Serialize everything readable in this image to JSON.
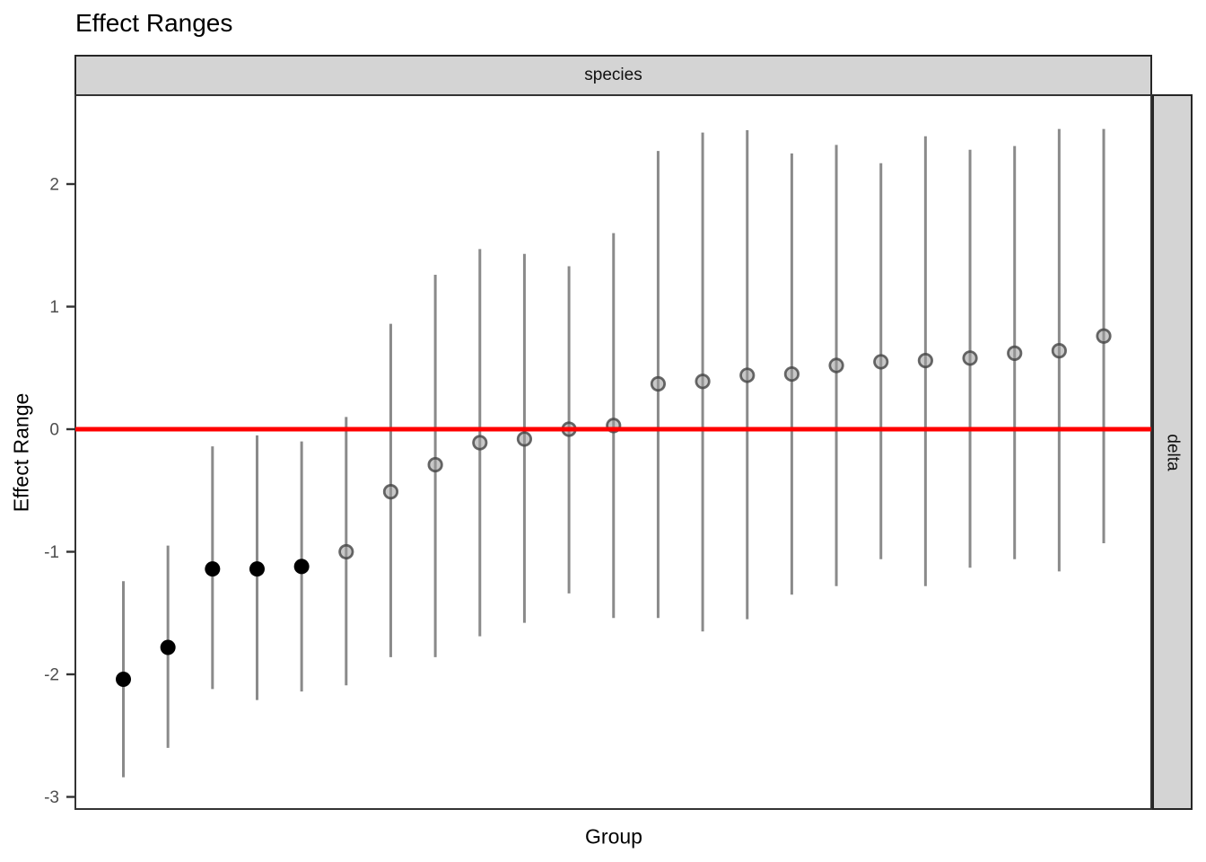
{
  "title": "Effect Ranges",
  "facets": {
    "top_strip": "species",
    "right_strip": "delta"
  },
  "axes": {
    "y_label": "Effect Range",
    "x_label": "Group",
    "y_ticks": [
      "2",
      "1",
      "0",
      "-1",
      "-2",
      "-3"
    ],
    "y_tick_values": [
      2,
      1,
      0,
      -1,
      -2,
      -3
    ]
  },
  "reference_line": {
    "y": 0,
    "color": "#ff0000"
  },
  "colors": {
    "strip_fill": "#d4d4d4",
    "strip_border": "#262626",
    "panel_border": "#333333",
    "errorbar": "#8a8a8a",
    "significant_point": "#000000",
    "nonsignificant_point_fill": "#9a9a9a",
    "nonsignificant_point_stroke": "#444444",
    "tick_label": "#4d4d4d"
  },
  "chart_data": {
    "type": "pointrange-scatter",
    "title": "Effect Ranges",
    "xlabel": "Group",
    "ylabel": "Effect Range",
    "facet_row": "species",
    "facet_col": "delta",
    "ylim": [
      -3.1,
      2.74
    ],
    "reference_y": 0,
    "legend": "none",
    "points": [
      {
        "group": 1,
        "y": -2.04,
        "lo": -2.84,
        "hi": -1.24,
        "significant": true
      },
      {
        "group": 2,
        "y": -1.78,
        "lo": -2.6,
        "hi": -0.95,
        "significant": true
      },
      {
        "group": 3,
        "y": -1.14,
        "lo": -2.12,
        "hi": -0.14,
        "significant": true
      },
      {
        "group": 4,
        "y": -1.14,
        "lo": -2.21,
        "hi": -0.05,
        "significant": true
      },
      {
        "group": 5,
        "y": -1.12,
        "lo": -2.14,
        "hi": -0.1,
        "significant": true
      },
      {
        "group": 6,
        "y": -1.0,
        "lo": -2.09,
        "hi": 0.1,
        "significant": false
      },
      {
        "group": 7,
        "y": -0.51,
        "lo": -1.86,
        "hi": 0.86,
        "significant": false
      },
      {
        "group": 8,
        "y": -0.29,
        "lo": -1.86,
        "hi": 1.26,
        "significant": false
      },
      {
        "group": 9,
        "y": -0.11,
        "lo": -1.69,
        "hi": 1.47,
        "significant": false
      },
      {
        "group": 10,
        "y": -0.08,
        "lo": -1.58,
        "hi": 1.43,
        "significant": false
      },
      {
        "group": 11,
        "y": 0.0,
        "lo": -1.34,
        "hi": 1.33,
        "significant": false
      },
      {
        "group": 12,
        "y": 0.03,
        "lo": -1.54,
        "hi": 1.6,
        "significant": false
      },
      {
        "group": 13,
        "y": 0.37,
        "lo": -1.54,
        "hi": 2.27,
        "significant": false
      },
      {
        "group": 14,
        "y": 0.39,
        "lo": -1.65,
        "hi": 2.42,
        "significant": false
      },
      {
        "group": 15,
        "y": 0.44,
        "lo": -1.55,
        "hi": 2.44,
        "significant": false
      },
      {
        "group": 16,
        "y": 0.45,
        "lo": -1.35,
        "hi": 2.25,
        "significant": false
      },
      {
        "group": 17,
        "y": 0.52,
        "lo": -1.28,
        "hi": 2.32,
        "significant": false
      },
      {
        "group": 18,
        "y": 0.55,
        "lo": -1.06,
        "hi": 2.17,
        "significant": false
      },
      {
        "group": 19,
        "y": 0.56,
        "lo": -1.28,
        "hi": 2.39,
        "significant": false
      },
      {
        "group": 20,
        "y": 0.58,
        "lo": -1.13,
        "hi": 2.28,
        "significant": false
      },
      {
        "group": 21,
        "y": 0.62,
        "lo": -1.06,
        "hi": 2.31,
        "significant": false
      },
      {
        "group": 22,
        "y": 0.64,
        "lo": -1.16,
        "hi": 2.45,
        "significant": false
      },
      {
        "group": 23,
        "y": 0.76,
        "lo": -0.93,
        "hi": 2.45,
        "significant": false
      }
    ]
  }
}
